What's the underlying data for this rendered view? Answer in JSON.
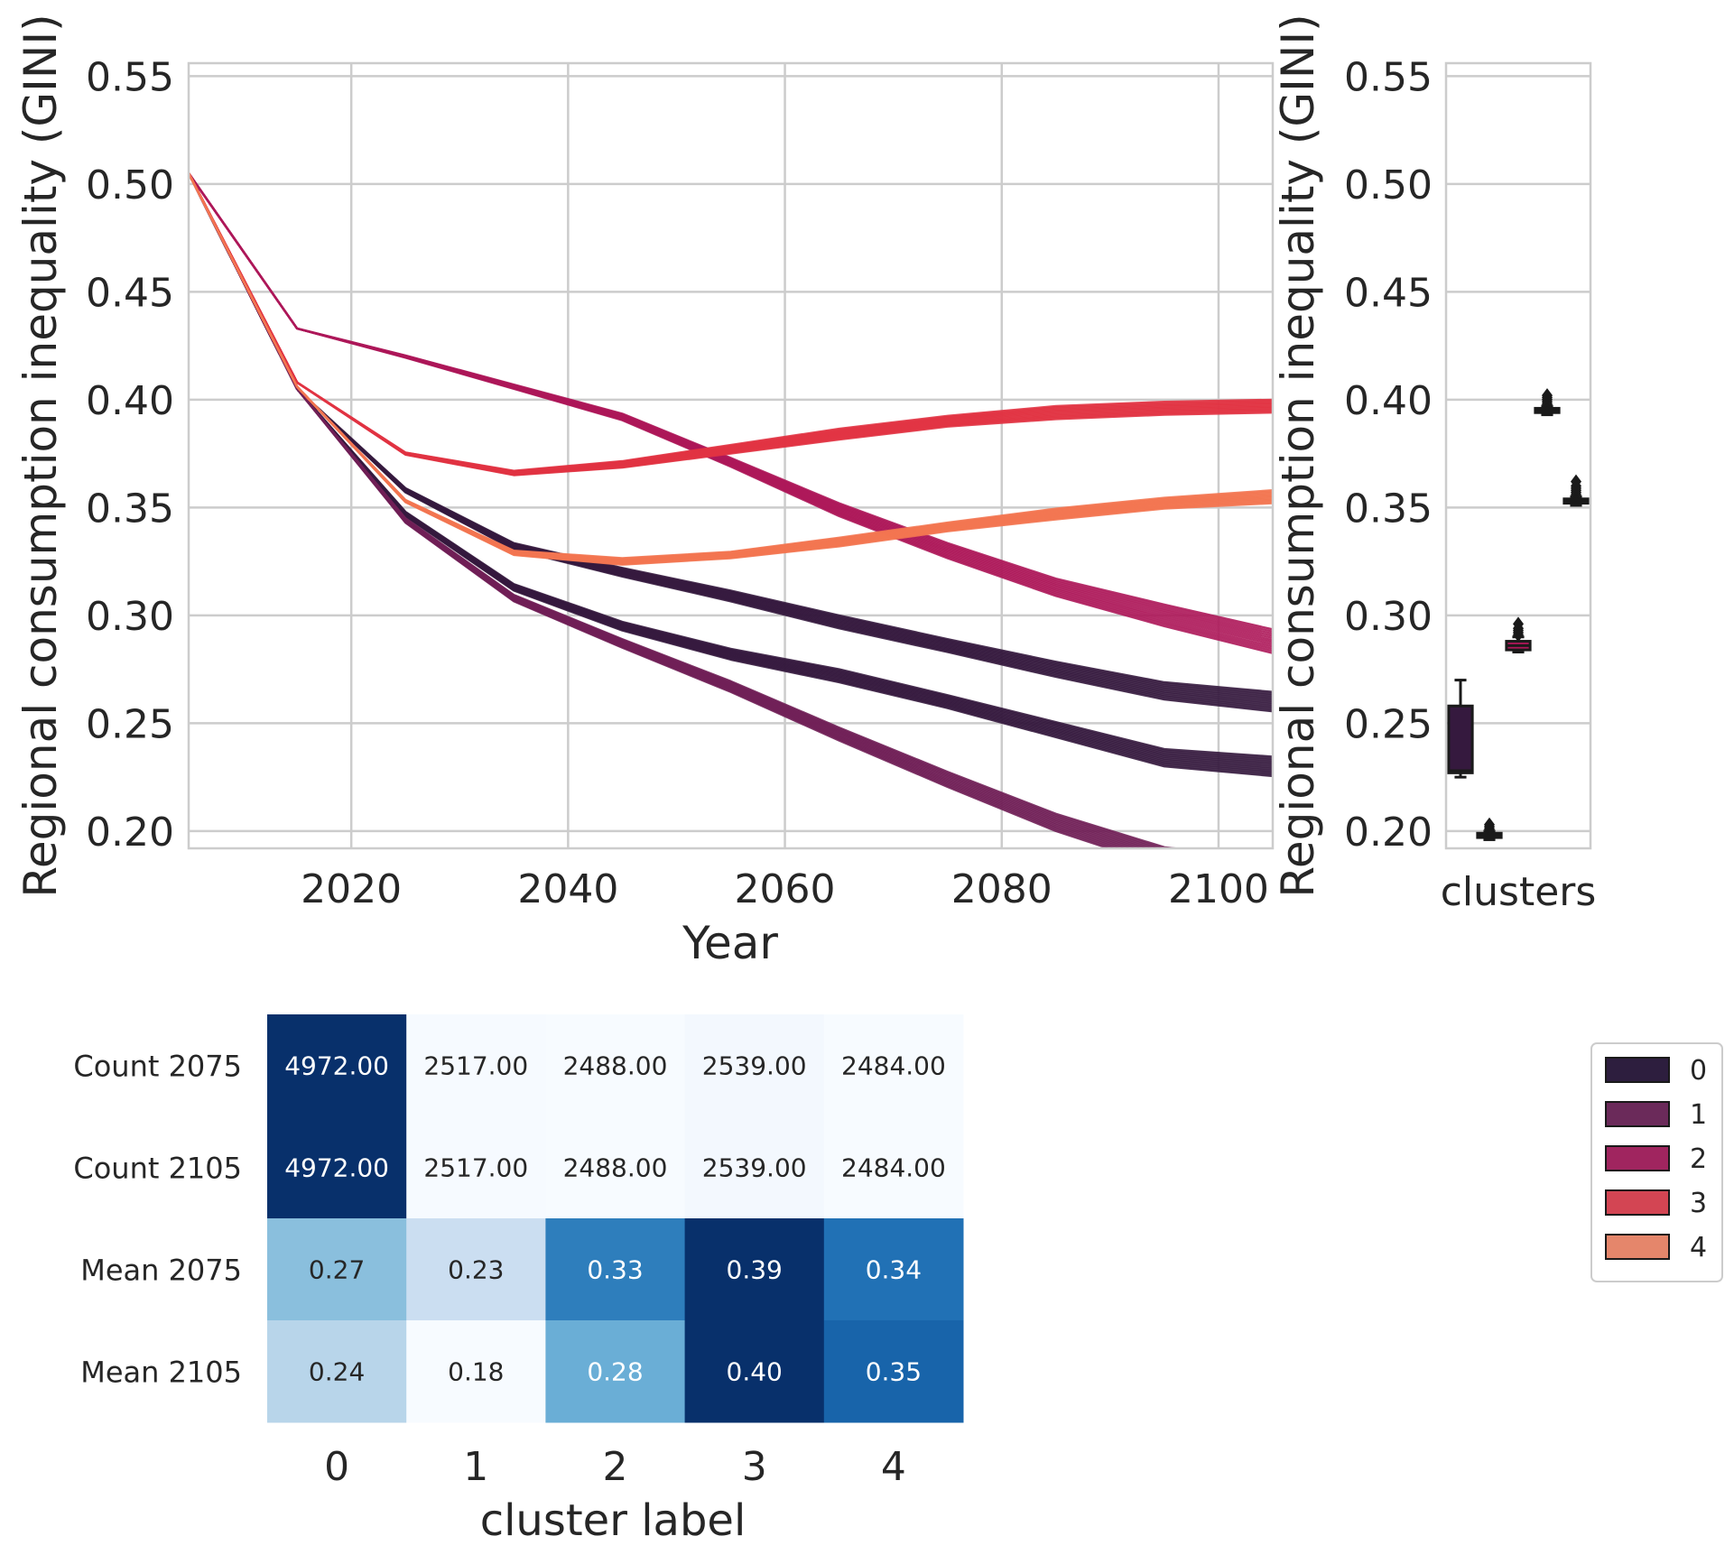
{
  "chart_data": [
    {
      "type": "line",
      "xlabel": "Year",
      "ylabel": "Regional consumption inequality (GINI)",
      "xlim": [
        2005,
        2105
      ],
      "ylim": [
        0.192,
        0.556
      ],
      "xticks": [
        2020,
        2040,
        2060,
        2080,
        2100
      ],
      "yticks": [
        0.2,
        0.25,
        0.3,
        0.35,
        0.4,
        0.45,
        0.5,
        0.55
      ],
      "grid": true,
      "x": [
        2005,
        2015,
        2025,
        2035,
        2045,
        2055,
        2065,
        2075,
        2085,
        2095,
        2105
      ],
      "series": [
        {
          "name": "0",
          "color": "#35193e",
          "bands": [
            {
              "values": [
                0.505,
                0.405,
                0.358,
                0.332,
                0.32,
                0.309,
                0.297,
                0.286,
                0.275,
                0.265,
                0.26
              ],
              "spread": [
                0.0,
                0.0,
                0.002,
                0.003,
                0.004,
                0.005,
                0.006,
                0.006,
                0.007,
                0.008,
                0.009
              ]
            },
            {
              "values": [
                0.505,
                0.405,
                0.347,
                0.313,
                0.295,
                0.282,
                0.272,
                0.26,
                0.247,
                0.234,
                0.23
              ],
              "spread": [
                0.0,
                0.0,
                0.002,
                0.003,
                0.004,
                0.005,
                0.006,
                0.006,
                0.007,
                0.008,
                0.009
              ]
            }
          ]
        },
        {
          "name": "1",
          "color": "#701f57",
          "bands": [
            {
              "values": [
                0.505,
                0.405,
                0.344,
                0.308,
                0.287,
                0.267,
                0.245,
                0.224,
                0.204,
                0.188,
                0.182
              ],
              "spread": [
                0.0,
                0.0,
                0.002,
                0.003,
                0.004,
                0.005,
                0.006,
                0.007,
                0.008,
                0.009,
                0.01
              ]
            }
          ]
        },
        {
          "name": "2",
          "color": "#ad1759",
          "bands": [
            {
              "values": [
                0.505,
                0.433,
                0.42,
                0.406,
                0.392,
                0.371,
                0.349,
                0.33,
                0.313,
                0.3,
                0.288
              ],
              "spread": [
                0.0,
                0.0,
                0.001,
                0.002,
                0.003,
                0.004,
                0.006,
                0.007,
                0.008,
                0.01,
                0.011
              ]
            }
          ]
        },
        {
          "name": "3",
          "color": "#e13342",
          "bands": [
            {
              "values": [
                0.505,
                0.408,
                0.375,
                0.366,
                0.37,
                0.377,
                0.384,
                0.39,
                0.394,
                0.396,
                0.397
              ],
              "spread": [
                0.0,
                0.0,
                0.001,
                0.002,
                0.003,
                0.004,
                0.005,
                0.005,
                0.006,
                0.006,
                0.006
              ]
            }
          ]
        },
        {
          "name": "4",
          "color": "#f37651",
          "bands": [
            {
              "values": [
                0.505,
                0.406,
                0.353,
                0.329,
                0.325,
                0.328,
                0.334,
                0.341,
                0.347,
                0.352,
                0.355
              ],
              "spread": [
                0.0,
                0.0,
                0.001,
                0.002,
                0.003,
                0.003,
                0.004,
                0.004,
                0.005,
                0.005,
                0.006
              ]
            }
          ]
        }
      ]
    },
    {
      "type": "box",
      "xlabel": "clusters",
      "ylabel": "Regional consumption inequality (GINI)",
      "ylim": [
        0.192,
        0.556
      ],
      "yticks": [
        0.2,
        0.25,
        0.3,
        0.35,
        0.4,
        0.45,
        0.5,
        0.55
      ],
      "boxes": [
        {
          "name": "0",
          "color": "#35193e",
          "q1": 0.227,
          "median": 0.228,
          "q3": 0.258,
          "whisker_low": 0.225,
          "whisker_high": 0.27,
          "fliers": []
        },
        {
          "name": "1",
          "color": "#701f57",
          "q1": 0.197,
          "median": 0.198,
          "q3": 0.199,
          "whisker_low": 0.196,
          "whisker_high": 0.2,
          "fliers": [
            0.201,
            0.202,
            0.203
          ]
        },
        {
          "name": "2",
          "color": "#ad1759",
          "q1": 0.284,
          "median": 0.286,
          "q3": 0.288,
          "whisker_low": 0.283,
          "whisker_high": 0.29,
          "fliers": [
            0.291,
            0.292,
            0.293,
            0.294,
            0.296
          ]
        },
        {
          "name": "3",
          "color": "#e13342",
          "q1": 0.394,
          "median": 0.395,
          "q3": 0.396,
          "whisker_low": 0.393,
          "whisker_high": 0.397,
          "fliers": [
            0.398,
            0.399,
            0.4,
            0.401,
            0.402
          ]
        },
        {
          "name": "4",
          "color": "#f37651",
          "q1": 0.352,
          "median": 0.353,
          "q3": 0.354,
          "whisker_low": 0.351,
          "whisker_high": 0.355,
          "fliers": [
            0.356,
            0.357,
            0.358,
            0.359,
            0.36,
            0.362
          ]
        }
      ]
    },
    {
      "type": "heatmap",
      "xlabel": "cluster label",
      "columns": [
        "0",
        "1",
        "2",
        "3",
        "4"
      ],
      "rows": [
        "Count 2075",
        "Count 2105",
        "Mean 2075",
        "Mean 2105"
      ],
      "row_groups": [
        {
          "rows": [
            0,
            1
          ],
          "colormap": "Blues",
          "vmin": 2484,
          "vmax": 4972
        },
        {
          "rows": [
            2,
            3
          ],
          "colormap": "Blues",
          "vmin": 0.18,
          "vmax": 0.4
        }
      ],
      "values": [
        [
          4972,
          2517,
          2488,
          2539,
          2484
        ],
        [
          4972,
          2517,
          2488,
          2539,
          2484
        ],
        [
          0.27,
          0.23,
          0.33,
          0.39,
          0.34
        ],
        [
          0.24,
          0.18,
          0.28,
          0.4,
          0.35
        ]
      ],
      "labels": [
        [
          "4972.00",
          "2517.00",
          "2488.00",
          "2539.00",
          "2484.00"
        ],
        [
          "4972.00",
          "2517.00",
          "2488.00",
          "2539.00",
          "2484.00"
        ],
        [
          "0.27",
          "0.23",
          "0.33",
          "0.39",
          "0.34"
        ],
        [
          "0.24",
          "0.18",
          "0.28",
          "0.40",
          "0.35"
        ]
      ],
      "cell_colors": [
        [
          "#08306b",
          "#f6faff",
          "#f7fbff",
          "#f3f8fe",
          "#f7fbff"
        ],
        [
          "#08306b",
          "#f6faff",
          "#f7fbff",
          "#f3f8fe",
          "#f7fbff"
        ],
        [
          "#8abfdd",
          "#cbdef1",
          "#2e7ebc",
          "#08306b",
          "#2171b5"
        ],
        [
          "#b8d5ea",
          "#f7fbff",
          "#6aaed6",
          "#08306b",
          "#1864aa"
        ]
      ],
      "label_colors": [
        [
          "#ffffff",
          "#262626",
          "#262626",
          "#262626",
          "#262626"
        ],
        [
          "#ffffff",
          "#262626",
          "#262626",
          "#262626",
          "#262626"
        ],
        [
          "#262626",
          "#262626",
          "#ffffff",
          "#ffffff",
          "#ffffff"
        ],
        [
          "#262626",
          "#262626",
          "#ffffff",
          "#ffffff",
          "#ffffff"
        ]
      ]
    }
  ],
  "legend": {
    "placement": "right",
    "entries": [
      {
        "label": "0",
        "color": "#2d1e3e"
      },
      {
        "label": "1",
        "color": "#6b2a5a"
      },
      {
        "label": "2",
        "color": "#a0255f"
      },
      {
        "label": "3",
        "color": "#d34553"
      },
      {
        "label": "4",
        "color": "#e5866b"
      }
    ]
  }
}
